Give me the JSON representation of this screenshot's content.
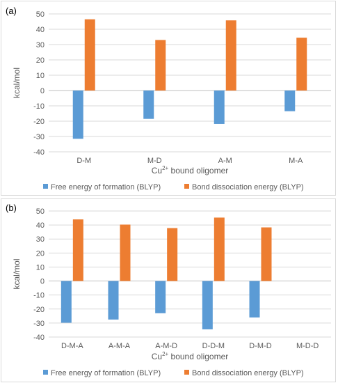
{
  "colors": {
    "free": "#5b9bd5",
    "bond": "#ed7d31",
    "grid": "#d9d9d9",
    "text": "#595959",
    "zero": "#bfbfbf"
  },
  "chart_data": [
    {
      "type": "bar",
      "panel_label": "(a)",
      "categories": [
        "D-M",
        "M-D",
        "A-M",
        "M-A"
      ],
      "series": [
        {
          "name": "Free energy of formation (BLYP)",
          "values": [
            -31.5,
            -18.5,
            -21.8,
            -13.5
          ]
        },
        {
          "name": "Bond dissociation energy (BLYP)",
          "values": [
            46.5,
            33,
            45.8,
            34.5
          ]
        }
      ],
      "ylim": [
        -40,
        50
      ],
      "yticks": [
        "-40",
        "-30",
        "-20",
        "-10",
        "0",
        "10",
        "20",
        "30",
        "40",
        "50"
      ],
      "ylabel": "kcal/mol",
      "xlabel_main": "Cu",
      "xlabel_sup": "2+",
      "xlabel_rest": " bound oligomer",
      "grid": true,
      "legend": "bottom"
    },
    {
      "type": "bar",
      "panel_label": "(b)",
      "categories": [
        "D-M-A",
        "A-M-A",
        "A-M-D",
        "D-D-M",
        "D-M-D",
        "M-D-D"
      ],
      "series": [
        {
          "name": "Free energy of formation (BLYP)",
          "values": [
            -29.8,
            -27.5,
            -23,
            -34.5,
            -26,
            null
          ]
        },
        {
          "name": "Bond dissociation energy (BLYP)",
          "values": [
            44,
            40.3,
            37.8,
            45.3,
            38.3,
            null
          ]
        }
      ],
      "ylim": [
        -40,
        50
      ],
      "yticks": [
        "-40",
        "-30",
        "-20",
        "-10",
        "0",
        "10",
        "20",
        "30",
        "40",
        "50"
      ],
      "ylabel": "kcal/mol",
      "xlabel_main": "Cu",
      "xlabel_sup": "2+",
      "xlabel_rest": " bound oligomer",
      "grid": true,
      "legend": "bottom"
    }
  ]
}
